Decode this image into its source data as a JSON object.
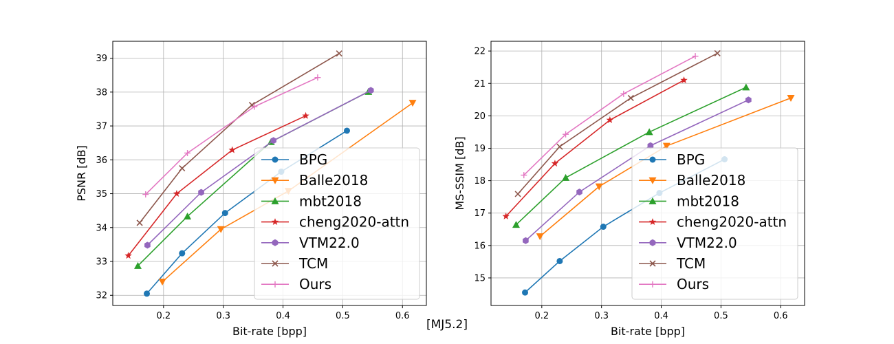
{
  "caption": "[MJ5.2]",
  "series_colors": {
    "BPG": "#1f77b4",
    "Balle2018": "#ff7f0e",
    "mbt2018": "#2ca02c",
    "cheng2020-attn": "#d62728",
    "VTM22.0": "#9467bd",
    "TCM": "#8c564b",
    "Ours": "#e377c2"
  },
  "chart_data": [
    {
      "type": "line",
      "title": "",
      "xlabel": "Bit-rate [bpp]",
      "ylabel": "PSNR [dB]",
      "xlim": [
        0.115,
        0.64
      ],
      "ylim": [
        31.7,
        39.5
      ],
      "xticks": [
        0.2,
        0.3,
        0.4,
        0.5,
        0.6
      ],
      "yticks": [
        32,
        33,
        34,
        35,
        36,
        37,
        38,
        39
      ],
      "xtick_labels": [
        "0.2",
        "0.3",
        "0.4",
        "0.5",
        "0.6"
      ],
      "ytick_labels": [
        "32",
        "33",
        "34",
        "35",
        "36",
        "37",
        "38",
        "39"
      ],
      "grid": true,
      "legend_position": "lower-right",
      "series": [
        {
          "name": "BPG",
          "marker": "circle",
          "x": [
            0.172,
            0.231,
            0.303,
            0.397,
            0.507
          ],
          "y": [
            32.05,
            33.24,
            34.43,
            35.65,
            36.86
          ]
        },
        {
          "name": "Balle2018",
          "marker": "triangle-down",
          "x": [
            0.198,
            0.296,
            0.409,
            0.617
          ],
          "y": [
            32.4,
            33.95,
            35.08,
            37.68
          ]
        },
        {
          "name": "mbt2018",
          "marker": "triangle-up",
          "x": [
            0.157,
            0.24,
            0.38,
            0.543
          ],
          "y": [
            32.87,
            34.33,
            36.53,
            38.01
          ]
        },
        {
          "name": "cheng2020-attn",
          "marker": "star",
          "x": [
            0.141,
            0.222,
            0.315,
            0.438
          ],
          "y": [
            33.17,
            35.0,
            36.29,
            37.3
          ]
        },
        {
          "name": "VTM22.0",
          "marker": "hexagon",
          "x": [
            0.173,
            0.263,
            0.384,
            0.547
          ],
          "y": [
            33.48,
            35.04,
            36.57,
            38.05
          ]
        },
        {
          "name": "TCM",
          "marker": "x",
          "x": [
            0.16,
            0.231,
            0.348,
            0.494
          ],
          "y": [
            34.14,
            35.75,
            37.62,
            39.14
          ]
        },
        {
          "name": "Ours",
          "marker": "plus",
          "x": [
            0.17,
            0.24,
            0.352,
            0.458
          ],
          "y": [
            34.98,
            36.2,
            37.57,
            38.43
          ]
        }
      ]
    },
    {
      "type": "line",
      "title": "",
      "xlabel": "Bit-rate [bpp]",
      "ylabel": "MS-SSIM [dB]",
      "xlim": [
        0.115,
        0.64
      ],
      "ylim": [
        14.15,
        22.3
      ],
      "xticks": [
        0.2,
        0.3,
        0.4,
        0.5,
        0.6
      ],
      "yticks": [
        15,
        16,
        17,
        18,
        19,
        20,
        21,
        22
      ],
      "xtick_labels": [
        "0.2",
        "0.3",
        "0.4",
        "0.5",
        "0.6"
      ],
      "ytick_labels": [
        "15",
        "16",
        "17",
        "18",
        "19",
        "20",
        "21",
        "22"
      ],
      "grid": true,
      "legend_position": "lower-right",
      "series": [
        {
          "name": "BPG",
          "marker": "circle",
          "x": [
            0.172,
            0.23,
            0.303,
            0.397,
            0.506
          ],
          "y": [
            14.55,
            15.52,
            16.58,
            17.62,
            18.66
          ]
        },
        {
          "name": "Balle2018",
          "marker": "triangle-down",
          "x": [
            0.197,
            0.296,
            0.409,
            0.617
          ],
          "y": [
            16.28,
            17.82,
            19.07,
            20.55
          ]
        },
        {
          "name": "mbt2018",
          "marker": "triangle-up",
          "x": [
            0.157,
            0.24,
            0.38,
            0.542
          ],
          "y": [
            16.64,
            18.09,
            19.5,
            20.88
          ]
        },
        {
          "name": "cheng2020-attn",
          "marker": "star",
          "x": [
            0.14,
            0.222,
            0.314,
            0.438
          ],
          "y": [
            16.9,
            18.53,
            19.87,
            21.1
          ]
        },
        {
          "name": "VTM22.0",
          "marker": "hexagon",
          "x": [
            0.173,
            0.263,
            0.382,
            0.546
          ],
          "y": [
            16.15,
            17.65,
            19.08,
            20.49
          ]
        },
        {
          "name": "TCM",
          "marker": "x",
          "x": [
            0.16,
            0.23,
            0.349,
            0.494
          ],
          "y": [
            17.59,
            19.05,
            20.55,
            21.93
          ]
        },
        {
          "name": "Ours",
          "marker": "plus",
          "x": [
            0.17,
            0.24,
            0.337,
            0.457
          ],
          "y": [
            18.17,
            19.43,
            20.68,
            21.84
          ]
        }
      ]
    }
  ]
}
